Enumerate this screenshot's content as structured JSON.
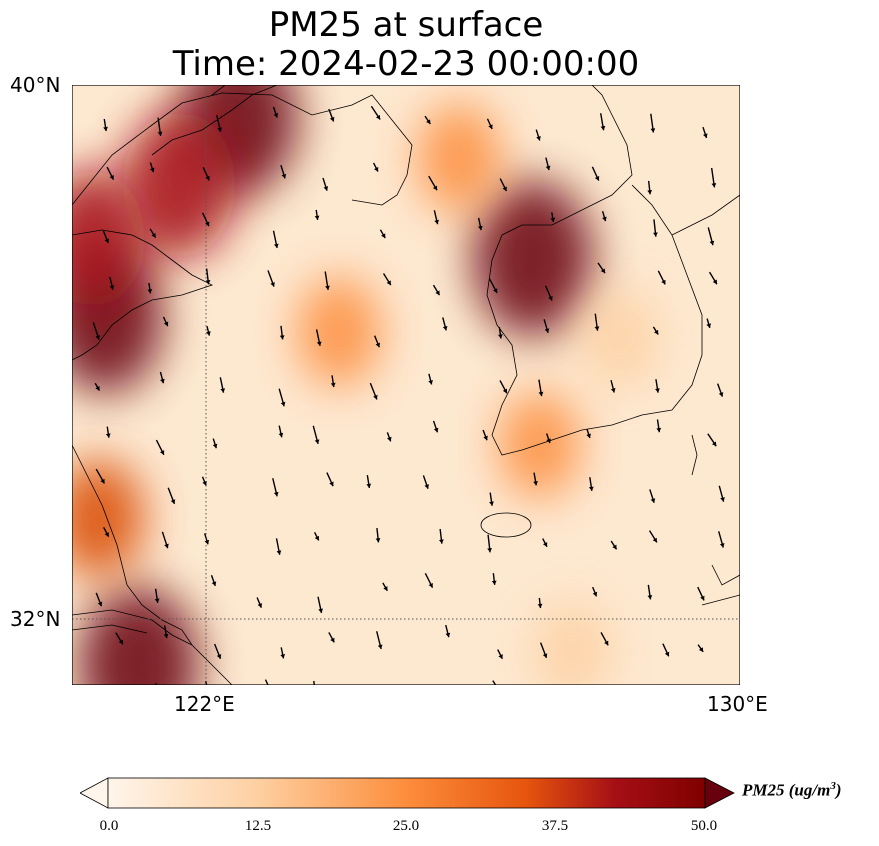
{
  "title": {
    "line1": "PM25 at surface",
    "line2": "Time: 2024-02-23 00:00:00"
  },
  "axes": {
    "lat_labels": [
      "40°N",
      "32°N"
    ],
    "lon_labels": [
      "122°E",
      "130°E"
    ]
  },
  "colorbar": {
    "title_prefix": "PM25 (ug/m",
    "title_sup": "3",
    "title_suffix": ")",
    "ticks": [
      "0.0",
      "12.5",
      "25.0",
      "37.5",
      "50.0"
    ],
    "colors": [
      "#fff5eb",
      "#fdd0a2",
      "#fd8d3c",
      "#d94801",
      "#a50f15",
      "#67000d"
    ]
  },
  "map": {
    "extent_lon": [
      120,
      130
    ],
    "extent_lat": [
      31,
      40
    ],
    "gridlines": {
      "lon": 122,
      "lat": 32,
      "style": "dotted"
    },
    "hotspots": [
      {
        "lon": 122.5,
        "lat": 39.5,
        "value": 48
      },
      {
        "lon": 121.6,
        "lat": 38.5,
        "value": 44
      },
      {
        "lon": 120.5,
        "lat": 36.5,
        "value": 46
      },
      {
        "lon": 120.3,
        "lat": 37.7,
        "value": 38
      },
      {
        "lon": 126.9,
        "lat": 37.4,
        "value": 50
      },
      {
        "lon": 121.0,
        "lat": 31.3,
        "value": 50
      },
      {
        "lon": 120.4,
        "lat": 33.5,
        "value": 26
      },
      {
        "lon": 125.8,
        "lat": 38.9,
        "value": 20
      },
      {
        "lon": 124.0,
        "lat": 36.3,
        "value": 20
      },
      {
        "lon": 127.0,
        "lat": 34.6,
        "value": 18
      },
      {
        "lon": 127.5,
        "lat": 31.5,
        "value": 14
      },
      {
        "lon": 128.2,
        "lat": 36.2,
        "value": 14
      }
    ]
  }
}
